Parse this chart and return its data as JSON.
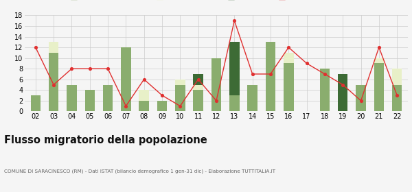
{
  "years": [
    "02",
    "03",
    "04",
    "05",
    "06",
    "07",
    "08",
    "09",
    "10",
    "11",
    "12",
    "13",
    "14",
    "15",
    "16",
    "17",
    "18",
    "19",
    "20",
    "21",
    "22"
  ],
  "iscritti_altri_comuni": [
    3,
    11,
    5,
    4,
    5,
    12,
    2,
    2,
    5,
    4,
    10,
    3,
    5,
    13,
    9,
    0,
    8,
    0,
    5,
    9,
    5
  ],
  "iscritti_estero": [
    0,
    2,
    0,
    0,
    0,
    0,
    2,
    0,
    1,
    1,
    0,
    0,
    0,
    0,
    2,
    0,
    0,
    0,
    0,
    1,
    3
  ],
  "iscritti_altri": [
    0,
    0,
    0,
    0,
    0,
    0,
    0,
    0,
    0,
    2,
    0,
    10,
    0,
    0,
    0,
    0,
    0,
    7,
    0,
    0,
    0
  ],
  "cancellati_anagrafe": [
    12,
    5,
    8,
    8,
    8,
    1,
    6,
    3,
    1,
    6,
    2,
    17,
    7,
    7,
    12,
    9,
    7,
    5,
    2,
    12,
    3
  ],
  "color_altri_comuni": "#8aad6e",
  "color_estero": "#e8f0c8",
  "color_altri": "#3d6b35",
  "color_cancellati": "#e03030",
  "title": "Flusso migratorio della popolazione",
  "subtitle": "COMUNE DI SARACINESCO (RM) - Dati ISTAT (bilancio demografico 1 gen-31 dic) - Elaborazione TUTTITALIA.IT",
  "ylim": [
    0,
    18
  ],
  "yticks": [
    0,
    2,
    4,
    6,
    8,
    10,
    12,
    14,
    16,
    18
  ],
  "bg_color": "#f5f5f5",
  "grid_color": "#cccccc"
}
